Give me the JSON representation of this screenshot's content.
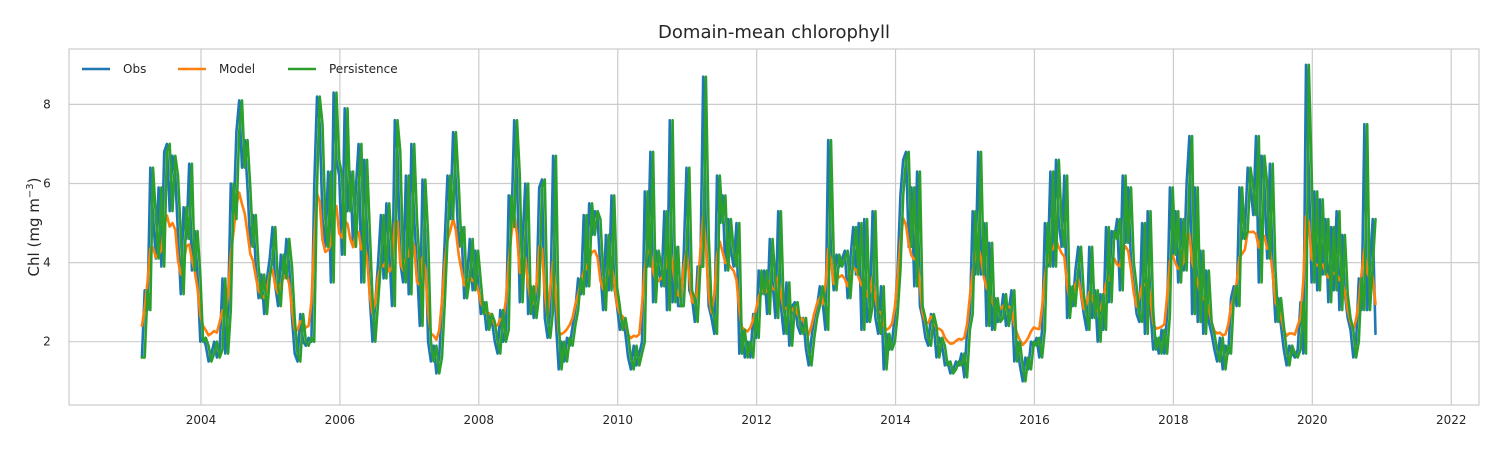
{
  "chart_data": {
    "type": "line",
    "title": "Domain-mean chlorophyll",
    "xlabel": "",
    "ylabel": "Chl (mg m",
    "ylabel_sup": "−3",
    "ylabel_end": ")",
    "xlim": [
      2002.1,
      2022.4
    ],
    "ylim": [
      0.4,
      9.4
    ],
    "xticks": [
      2004,
      2006,
      2008,
      2010,
      2012,
      2014,
      2016,
      2018,
      2020,
      2022
    ],
    "yticks": [
      2,
      4,
      6,
      8
    ],
    "grid": true,
    "legend_placement": "top-left",
    "series": [
      {
        "name": "Obs",
        "color": "#1f77b4",
        "x": [],
        "values": []
      },
      {
        "name": "Model",
        "color": "#ff7f0e",
        "x": [],
        "values": []
      },
      {
        "name": "Persistence",
        "color": "#2ca02c",
        "x": [],
        "values": []
      }
    ],
    "obs_biweekly": {
      "start": 2003.15,
      "step_years": 0.04,
      "values": [
        1.6,
        3.3,
        2.8,
        6.4,
        5.2,
        4.1,
        5.9,
        3.9,
        6.8,
        7.0,
        5.3,
        6.7,
        6.2,
        4.7,
        3.2,
        5.4,
        4.6,
        6.5,
        3.8,
        4.8,
        3.7,
        2.0,
        2.1,
        1.9,
        1.5,
        1.7,
        2.0,
        1.6,
        1.8,
        3.6,
        1.7,
        2.8,
        6.0,
        5.1,
        7.3,
        8.1,
        6.4,
        7.1,
        5.9,
        4.4,
        5.2,
        3.9,
        3.1,
        3.7,
        2.7,
        3.6,
        4.1,
        4.9,
        3.4,
        2.9,
        4.2,
        3.6,
        4.6,
        3.9,
        2.6,
        1.7,
        1.5,
        2.7,
        2.0,
        1.9,
        2.1,
        2.0,
        5.9,
        8.2,
        7.5,
        5.1,
        4.4,
        6.3,
        3.5,
        8.3,
        6.6,
        6.2,
        4.2,
        7.9,
        5.3,
        6.3,
        4.4,
        5.9,
        7.0,
        3.5,
        6.6,
        4.8,
        3.1,
        2.0,
        3.0,
        4.0,
        5.2,
        3.6,
        5.5,
        4.3,
        2.9,
        7.6,
        6.8,
        4.0,
        3.5,
        6.2,
        3.2,
        7.0,
        5.1,
        3.9,
        2.4,
        6.1,
        4.7,
        2.0,
        1.5,
        1.9,
        1.2,
        1.6,
        3.0,
        4.6,
        6.2,
        5.1,
        7.3,
        6.0,
        4.4,
        4.9,
        3.1,
        3.6,
        4.6,
        3.3,
        4.3,
        3.5,
        2.7,
        3.0,
        2.3,
        2.7,
        2.5,
        2.0,
        1.7,
        2.8,
        2.0,
        2.3,
        5.7,
        4.9,
        7.6,
        6.2,
        3.0,
        4.6,
        6.0,
        2.7,
        3.4,
        2.6,
        3.2,
        5.9,
        6.1,
        2.6,
        2.1,
        2.8,
        6.7,
        2.5,
        1.3,
        2.0,
        1.5,
        2.1,
        1.9,
        2.4,
        2.8,
        3.6,
        3.2,
        5.2,
        3.4,
        5.5,
        4.7,
        5.3,
        5.1,
        3.8,
        2.8,
        4.7,
        3.3,
        5.7,
        3.4,
        2.9,
        2.3,
        2.6,
        2.2,
        1.6,
        1.3,
        1.9,
        1.4,
        1.7,
        2.0,
        5.8,
        3.9,
        6.8,
        3.0,
        4.3,
        3.9,
        3.4,
        5.3,
        2.8,
        7.6,
        3.0,
        4.4,
        2.9,
        2.9,
        4.2,
        6.4,
        3.3,
        3.1,
        2.5,
        3.9,
        3.9,
        8.7,
        4.7,
        2.9,
        2.6,
        2.2,
        6.2,
        5.0,
        5.7,
        3.8,
        5.1,
        4.3,
        3.9,
        5.0,
        1.7,
        2.3,
        1.6,
        2.0,
        1.6,
        2.7,
        2.1,
        3.8,
        3.2,
        3.8,
        2.7,
        4.6,
        3.5,
        2.6,
        5.3,
        2.9,
        2.2,
        3.5,
        1.9,
        2.9,
        3.0,
        2.4,
        2.2,
        2.6,
        1.8,
        1.4,
        2.1,
        2.6,
        2.9,
        3.4,
        3.0,
        2.3,
        7.1,
        4.2,
        3.3,
        4.2,
        3.9,
        4.1,
        4.3,
        3.1,
        4.1,
        4.9,
        3.7,
        5.0,
        2.3,
        5.1,
        2.5,
        2.9,
        5.3,
        2.6,
        2.2,
        3.4,
        1.3,
        2.2,
        1.8,
        2.0,
        2.7,
        3.8,
        5.7,
        6.6,
        6.8,
        4.4,
        5.9,
        3.4,
        6.3,
        2.9,
        2.6,
        2.1,
        1.9,
        2.7,
        2.4,
        1.6,
        2.1,
        1.9,
        1.4,
        1.5,
        1.2,
        1.3,
        1.5,
        1.4,
        1.7,
        1.1,
        2.3,
        2.7,
        5.3,
        3.7,
        6.8,
        3.7,
        5.0,
        2.4,
        4.5,
        2.3,
        3.1,
        2.5,
        2.6,
        3.2,
        2.4,
        2.8,
        3.3,
        1.5,
        2.0,
        1.4,
        1.0,
        1.6,
        1.3,
        2.0,
        1.9,
        2.1,
        1.6,
        2.3,
        5.0,
        3.9,
        6.3,
        3.9,
        6.6,
        5.0,
        4.4,
        6.2,
        2.6,
        3.4,
        2.9,
        3.8,
        4.4,
        3.2,
        2.7,
        2.3,
        4.4,
        2.6,
        3.3,
        2.0,
        3.2,
        2.3,
        4.9,
        3.0,
        4.8,
        4.6,
        5.1,
        3.3,
        6.2,
        4.5,
        5.9,
        4.0,
        3.4,
        2.7,
        2.5,
        5.0,
        2.2,
        5.3,
        2.8,
        1.8,
        2.1,
        1.7,
        2.3,
        1.7,
        2.7,
        5.9,
        4.2,
        5.3,
        3.5,
        5.1,
        3.8,
        6.0,
        7.2,
        2.7,
        5.9,
        2.5,
        4.3,
        2.2,
        3.8,
        2.5,
        2.2,
        1.8,
        1.5,
        2.1,
        1.3,
        1.9,
        1.7,
        3.1,
        3.4,
        2.9,
        5.9,
        4.6,
        4.8,
        6.4,
        5.9,
        5.2,
        7.2,
        3.5,
        6.7,
        6.0,
        4.1,
        6.5,
        3.8,
        2.5,
        3.1,
        2.4,
        1.8,
        1.4,
        1.9,
        1.7,
        1.6,
        1.8,
        3.0,
        1.7,
        9.0,
        6.3,
        3.5,
        5.8,
        3.3,
        5.6,
        3.7,
        5.1,
        3.0,
        4.9,
        3.3,
        5.3,
        2.8,
        4.7,
        3.2,
        2.6,
        2.3,
        1.6,
        2.0,
        3.6,
        2.8,
        7.5,
        2.8,
        3.9,
        5.1,
        2.2
      ]
    }
  }
}
